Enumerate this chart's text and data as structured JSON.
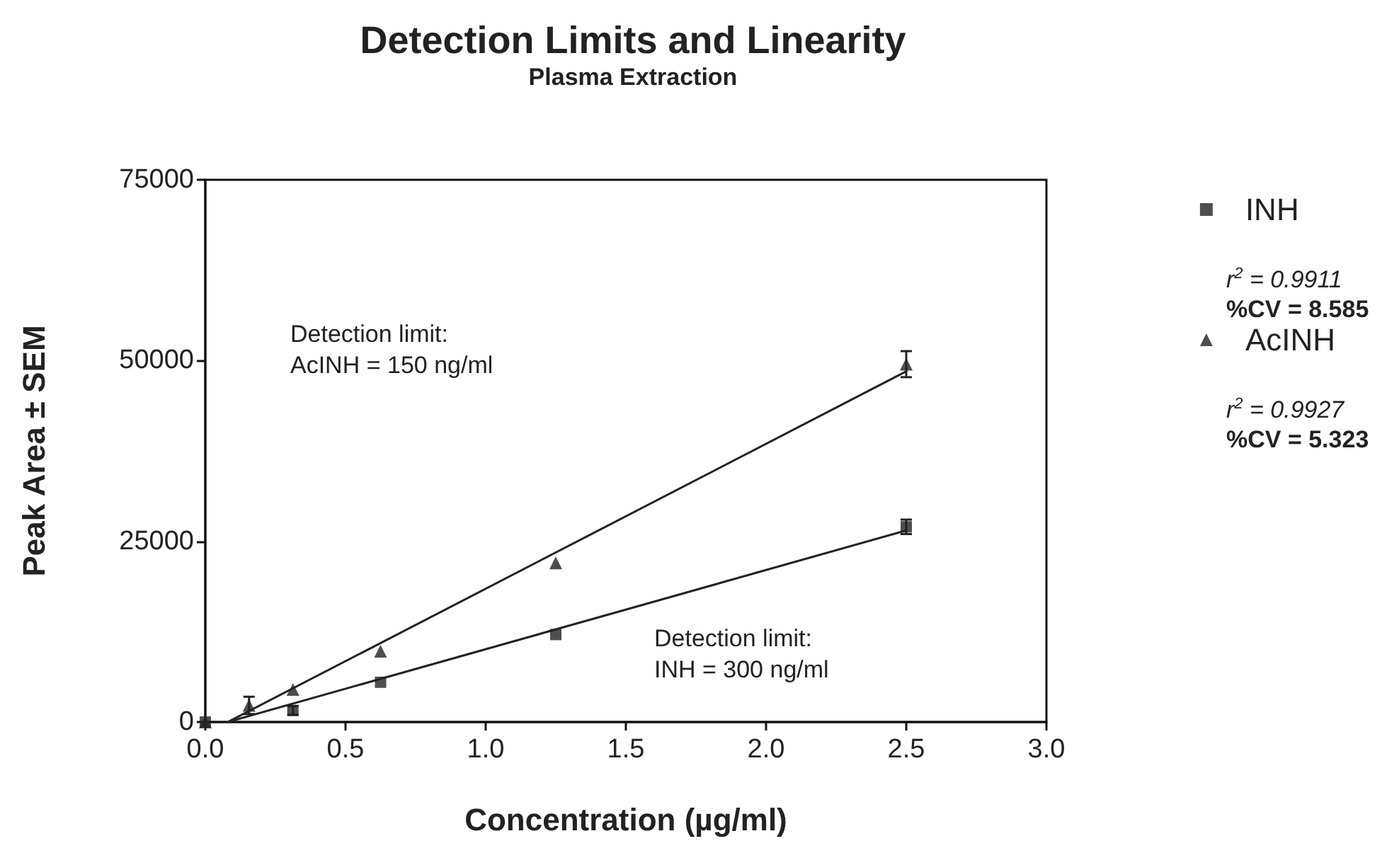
{
  "chart_data": {
    "type": "scatter",
    "title": "Detection Limits and Linearity",
    "subtitle": "Plasma Extraction",
    "xlabel": "Concentration (µg/ml)",
    "ylabel": "Peak Area ± SEM",
    "xlim": [
      0,
      3
    ],
    "xticks": [
      {
        "value": 0,
        "label": "0.0"
      },
      {
        "value": 0.5,
        "label": "0.5"
      },
      {
        "value": 1,
        "label": "1.0"
      },
      {
        "value": 1.5,
        "label": "1.5"
      },
      {
        "value": 2,
        "label": "2.0"
      },
      {
        "value": 2.5,
        "label": "2.5"
      },
      {
        "value": 3,
        "label": "3.0"
      }
    ],
    "ylim": [
      0,
      75000
    ],
    "yticks": [
      0,
      25000,
      50000,
      75000
    ],
    "grid": false,
    "legend": "right",
    "series": [
      {
        "name": "INH",
        "color": "#222222",
        "marker": "square",
        "x": [
          0,
          0.3125,
          0.625,
          1.25,
          2.5
        ],
        "values": [
          0,
          1600,
          5500,
          12100,
          27000
        ],
        "errors": [
          null,
          600,
          null,
          null,
          1000
        ]
      },
      {
        "name": "AcINH",
        "color": "#222222",
        "marker": "triangle",
        "x": [
          0,
          0.156,
          0.3125,
          0.625,
          1.25,
          2.5
        ],
        "values": [
          0,
          2300,
          4500,
          9800,
          22000,
          49500
        ],
        "errors": [
          null,
          1200,
          null,
          null,
          null,
          1800
        ]
      },
      {
        "type": "line",
        "color": "#222222",
        "marker": "none",
        "x": [
          0.08,
          2.5
        ],
        "values": [
          0,
          26500
        ]
      },
      {
        "type": "line",
        "color": "#222222",
        "marker": "none",
        "x": [
          0.08,
          2.5
        ],
        "values": [
          0,
          48500
        ]
      }
    ],
    "annotations": [
      "Detection limit:\nAcINH = 150 ng/ml",
      "Detection limit:\nINH = 300 ng/ml",
      "r$^{2}$ = 0.9911",
      "%CV = 8.585",
      "r$^{2}$ = 0.9927",
      "%CV = 5.323"
    ]
  }
}
